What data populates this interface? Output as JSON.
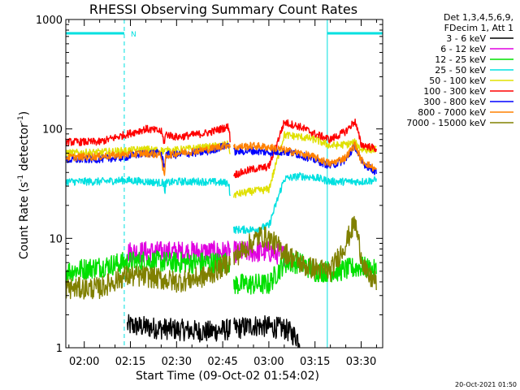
{
  "chart_data": {
    "type": "line",
    "title": "RHESSI Observing Summary Count Rates",
    "xlabel": "Start Time (09-Oct-02 01:54:02)",
    "ylabel_main": "Count Rate (s",
    "ylabel_sup1": "-1",
    "ylabel_mid": " detector",
    "ylabel_sup2": "-1",
    "ylabel_end": ")",
    "yscale": "log",
    "ylim": [
      1,
      1000
    ],
    "xlim_minutes": [
      -6.0,
      97.0
    ],
    "xticks": [
      {
        "m": 0,
        "label": "02:00"
      },
      {
        "m": 15,
        "label": "02:15"
      },
      {
        "m": 30,
        "label": "02:30"
      },
      {
        "m": 45,
        "label": "02:45"
      },
      {
        "m": 60,
        "label": "03:00"
      },
      {
        "m": 75,
        "label": "03:15"
      },
      {
        "m": 90,
        "label": "03:30"
      }
    ],
    "yticks": [
      {
        "v": 1,
        "label": "1"
      },
      {
        "v": 10,
        "label": "10"
      },
      {
        "v": 100,
        "label": "100"
      },
      {
        "v": 1000,
        "label": "1000"
      }
    ],
    "legend_header": [
      "Det 1,3,4,5,6,9,",
      "FDecim 1, Att 1"
    ],
    "legend_position": "right",
    "footer_date": "20-Oct-2021 01:50",
    "night_marker": "N",
    "night_intervals": [
      [
        -6.0,
        13.0
      ],
      [
        79.0,
        97.0
      ]
    ],
    "night_solid_edges": [
      -6.0,
      79.0
    ],
    "gaps": [
      [
        47.5,
        48.5
      ]
    ],
    "series": [
      {
        "name": "3 - 6 keV",
        "color": "#000000",
        "x": [
          14,
          25,
          40,
          50,
          55,
          65,
          70
        ],
        "y": [
          1.6,
          1.5,
          1.4,
          1.5,
          1.6,
          1.5,
          1.2
        ]
      },
      {
        "name": "6 - 12 keV",
        "color": "#e000e0",
        "x": [
          14,
          30,
          45,
          48.5,
          55,
          60,
          65
        ],
        "y": [
          7.5,
          7.5,
          7.5,
          7.5,
          7.5,
          7.5,
          7.0
        ]
      },
      {
        "name": "12 - 25 keV",
        "color": "#00e000",
        "x": [
          -6,
          5,
          13,
          20,
          30,
          40,
          47,
          48.5,
          55,
          60,
          65,
          70,
          75,
          82,
          90,
          95
        ],
        "y": [
          5.0,
          5.5,
          6.0,
          6.2,
          6.0,
          6.0,
          6.0,
          3.8,
          3.8,
          3.8,
          6.0,
          6.0,
          5.0,
          5.0,
          5.5,
          5.0
        ]
      },
      {
        "name": "25 - 50 keV",
        "color": "#00e0e0",
        "x": [
          -6,
          5,
          13,
          20,
          26,
          26.2,
          26.4,
          30,
          40,
          47,
          48.5,
          55,
          60,
          65,
          70,
          75,
          80,
          85,
          90,
          95
        ],
        "y": [
          33,
          33,
          34,
          33,
          32,
          22,
          32,
          33,
          33,
          32,
          12,
          12,
          13,
          35,
          37,
          36,
          33,
          33,
          33,
          34
        ]
      },
      {
        "name": "50 - 100 keV",
        "color": "#e0e000",
        "x": [
          -6,
          5,
          13,
          20,
          26,
          30,
          40,
          47,
          48.5,
          55,
          60,
          65,
          70,
          75,
          80,
          85,
          88,
          90,
          95
        ],
        "y": [
          60,
          61,
          63,
          65,
          63,
          64,
          68,
          72,
          25,
          27,
          28,
          88,
          85,
          80,
          70,
          72,
          75,
          65,
          65
        ]
      },
      {
        "name": "100 - 300 keV",
        "color": "#ff0000",
        "x": [
          -6,
          5,
          13,
          20,
          25,
          26,
          26.5,
          30,
          40,
          47,
          48.5,
          55,
          60,
          65,
          70,
          75,
          80,
          85,
          88,
          90,
          95
        ],
        "y": [
          76,
          76,
          88,
          100,
          95,
          75,
          90,
          84,
          92,
          105,
          38,
          43,
          45,
          115,
          105,
          90,
          80,
          95,
          118,
          72,
          66
        ]
      },
      {
        "name": "300 - 800 keV",
        "color": "#0000ff",
        "x": [
          -6,
          5,
          13,
          20,
          25,
          26,
          26.5,
          30,
          40,
          47,
          48.5,
          55,
          60,
          65,
          70,
          75,
          80,
          85,
          88,
          90,
          95
        ],
        "y": [
          52,
          53,
          55,
          60,
          60,
          45,
          58,
          58,
          62,
          72,
          62,
          63,
          61,
          62,
          58,
          52,
          46,
          52,
          70,
          50,
          40
        ]
      },
      {
        "name": "800 - 7000 keV",
        "color": "#ff8000",
        "x": [
          -6,
          5,
          13,
          20,
          25,
          26,
          26.5,
          30,
          40,
          47,
          48.5,
          55,
          60,
          65,
          70,
          75,
          80,
          85,
          88,
          90,
          95
        ],
        "y": [
          55,
          56,
          58,
          60,
          58,
          35,
          57,
          60,
          65,
          72,
          68,
          70,
          68,
          64,
          60,
          55,
          48,
          55,
          72,
          52,
          42
        ]
      },
      {
        "name": "7000 - 15000 keV",
        "color": "#808000",
        "x": [
          -6,
          5,
          13,
          20,
          30,
          40,
          47,
          52,
          57,
          60,
          65,
          72,
          80,
          85,
          88,
          90,
          92,
          95
        ],
        "y": [
          3.5,
          3.5,
          4.5,
          4.5,
          4.0,
          4.5,
          6.0,
          8.0,
          10.5,
          10.0,
          7.5,
          5.5,
          5.0,
          9.0,
          14.0,
          7.0,
          4.5,
          4.0
        ]
      }
    ]
  }
}
